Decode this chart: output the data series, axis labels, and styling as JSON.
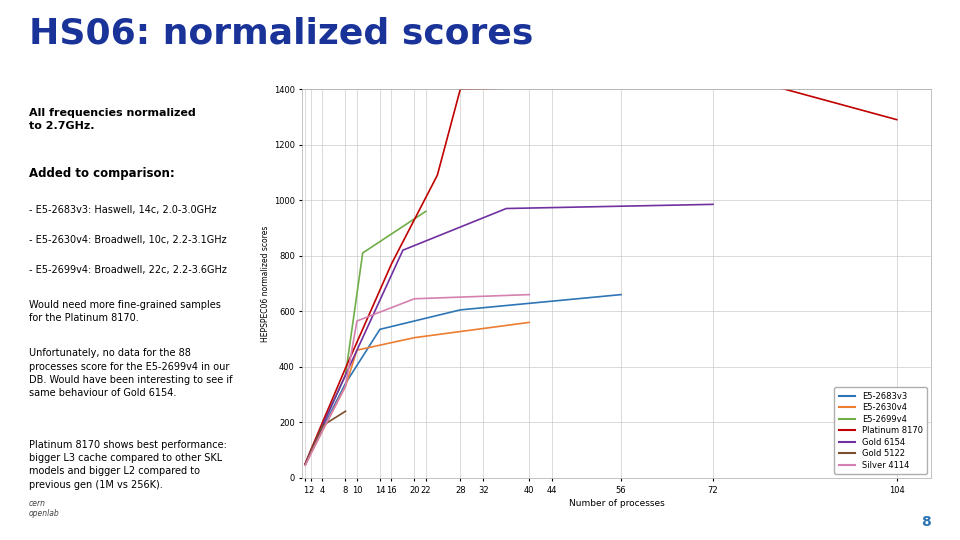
{
  "title": "HS06: normalized scores",
  "title_color": "#1a3399",
  "subtitle1": "All frequencies normalized\nto 2.7GHz.",
  "subtitle2": "Added to comparison:",
  "subtitle2_items": [
    "- E5-2683v3: Haswell, 14c, 2.0-3.0GHz",
    "- E5-2630v4: Broadwell, 10c, 2.2-3.1GHz",
    "- E5-2699v4: Broadwell, 22c, 2.2-3.6GHz"
  ],
  "text3": "Would need more fine-grained samples\nfor the Platinum 8170.",
  "text4": "Unfortunately, no data for the 88\nprocesses score for the E5-2699v4 in our\nDB. Would have been interesting to see if\nsame behaviour of Gold 6154.",
  "text5": "Platinum 8170 shows best performance:\nbigger L3 cache compared to other SKL\nmodels and bigger L2 compared to\nprevious gen (1M vs 256K).",
  "xlabel": "Number of processes",
  "ylabel": "HEPSPEC06 normalized scores",
  "background_color": "#ffffff",
  "plot_bg_color": "#ffffff",
  "grid_color": "#cccccc",
  "x_ticks": [
    1,
    2,
    4,
    8,
    10,
    14,
    16,
    20,
    22,
    28,
    32,
    40,
    44,
    56,
    72,
    104
  ],
  "y_ticks": [
    0,
    200,
    400,
    600,
    800,
    1000,
    1200,
    1400
  ],
  "ylim": [
    0,
    1400
  ],
  "xlim": [
    0.5,
    110
  ],
  "series": {
    "E5-2683v3": {
      "color": "#2e75b6",
      "x": [
        1,
        2,
        4,
        8,
        14,
        28,
        56
      ],
      "y": [
        48,
        92,
        178,
        340,
        535,
        605,
        660
      ]
    },
    "E5-2630v4": {
      "color": "#ed7d31",
      "x": [
        1,
        2,
        4,
        8,
        10,
        20,
        40
      ],
      "y": [
        46,
        88,
        170,
        330,
        460,
        505,
        560
      ]
    },
    "E5-2699v4": {
      "color": "#70ad47",
      "x": [
        1,
        2,
        4,
        8,
        11,
        22
      ],
      "y": [
        50,
        98,
        190,
        370,
        810,
        960
      ]
    },
    "Platinum 8170": {
      "color": "#c00000",
      "x": [
        1,
        2,
        4,
        8,
        16,
        24,
        28,
        52,
        56,
        72,
        104
      ],
      "y": [
        52,
        102,
        200,
        395,
        770,
        1090,
        1400,
        1410,
        1430,
        1470,
        1290
      ]
    },
    "Gold 6154": {
      "color": "#7030a0",
      "x": [
        1,
        2,
        4,
        8,
        18,
        36,
        72
      ],
      "y": [
        50,
        97,
        188,
        370,
        820,
        970,
        985
      ]
    },
    "Gold 5122": {
      "color": "#7b4f2e",
      "x": [
        1,
        2,
        4,
        8
      ],
      "y": [
        50,
        97,
        188,
        240
      ]
    },
    "Silver 4114": {
      "color": "#d580b0",
      "x": [
        1,
        2,
        4,
        8,
        10,
        20,
        40
      ],
      "y": [
        46,
        88,
        170,
        330,
        565,
        645,
        660
      ]
    }
  },
  "page_num": "8"
}
